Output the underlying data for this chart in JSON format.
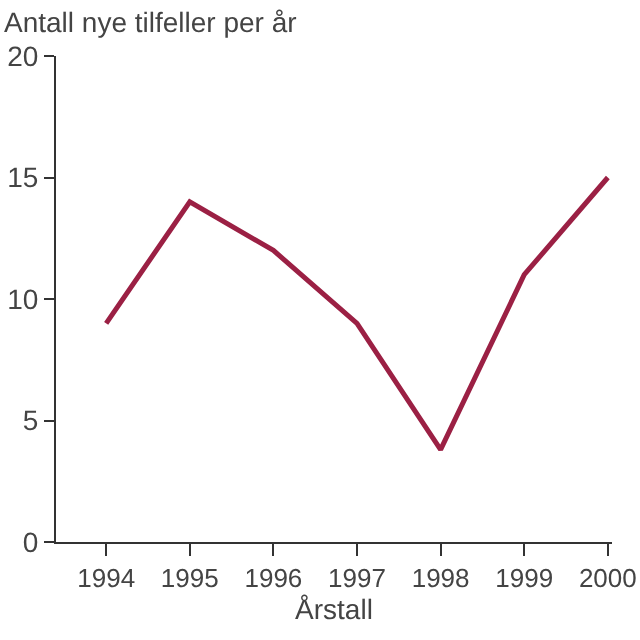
{
  "chart_data": {
    "type": "line",
    "xlabel": "Årstall",
    "ylabel": "Antall nye tilfeller per år",
    "categories": [
      "1994",
      "1995",
      "1996",
      "1997",
      "1998",
      "1999",
      "2000"
    ],
    "series": [
      {
        "color": "#9b2044",
        "values": [
          9,
          14,
          12,
          9,
          3.8,
          11,
          15
        ]
      }
    ],
    "ylim": [
      0,
      20
    ],
    "yticks": [
      0,
      5,
      10,
      15,
      20
    ],
    "grid": false,
    "marker": "none",
    "line_style": "solid"
  }
}
